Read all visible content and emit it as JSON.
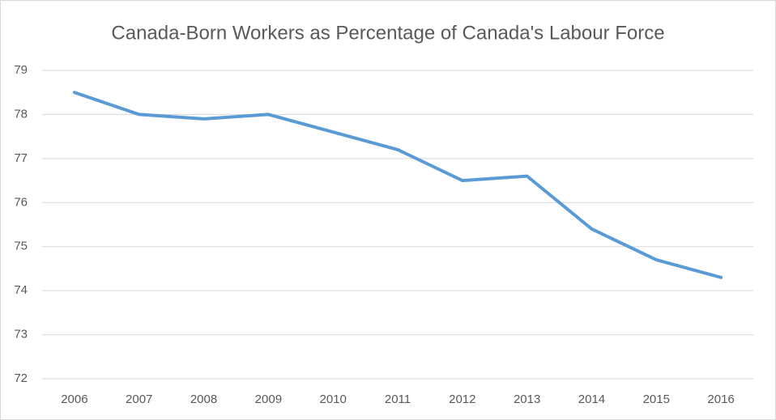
{
  "chart_data": {
    "type": "line",
    "title": "Canada-Born Workers as Percentage of Canada's Labour Force",
    "categories": [
      "2006",
      "2007",
      "2008",
      "2009",
      "2010",
      "2011",
      "2012",
      "2013",
      "2014",
      "2015",
      "2016"
    ],
    "values": [
      78.5,
      78.0,
      77.9,
      78.0,
      77.6,
      77.2,
      76.5,
      76.6,
      75.4,
      74.7,
      74.3
    ],
    "color": "#5b9bd5",
    "ylim": [
      72,
      79
    ],
    "yticks": [
      72,
      73,
      74,
      75,
      76,
      77,
      78,
      79
    ],
    "grid": true
  }
}
